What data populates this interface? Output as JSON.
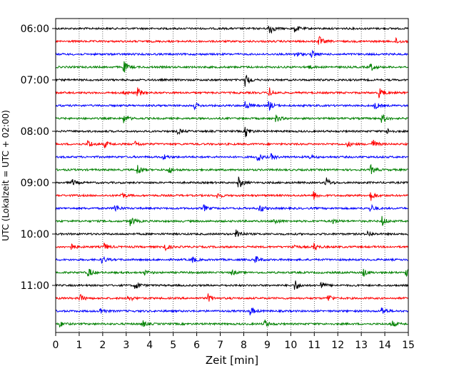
{
  "chart_data": {
    "type": "line",
    "title": "",
    "xlabel": "Zeit  [min]",
    "ylabel": "UTC (Lokalzeit = UTC + 02:00)",
    "xlim": [
      0,
      15
    ],
    "x_ticks": [
      0,
      1,
      2,
      3,
      4,
      5,
      6,
      7,
      8,
      9,
      10,
      11,
      12,
      13,
      14,
      15
    ],
    "y_tick_labels": [
      "06:00",
      "07:00",
      "08:00",
      "09:00",
      "10:00",
      "11:00"
    ],
    "y_tick_trace_index": [
      0,
      4,
      8,
      12,
      16,
      20
    ],
    "grid": "vertical dotted",
    "colors": [
      "#000000",
      "#ff0000",
      "#0000ff",
      "#008000"
    ],
    "traces": [
      {
        "start": "06:00",
        "events": [
          {
            "t": 9.1,
            "a": 1.0
          },
          {
            "t": 10.2,
            "a": 0.5
          }
        ]
      },
      {
        "start": "06:15",
        "events": [
          {
            "t": 11.2,
            "a": 0.8
          },
          {
            "t": 14.5,
            "a": 0.4
          }
        ]
      },
      {
        "start": "06:30",
        "events": [
          {
            "t": 10.2,
            "a": 0.5
          },
          {
            "t": 10.9,
            "a": 0.5
          }
        ]
      },
      {
        "start": "06:45",
        "events": [
          {
            "t": 2.9,
            "a": 0.9
          },
          {
            "t": 10.7,
            "a": 0.4
          },
          {
            "t": 13.4,
            "a": 0.6
          }
        ]
      },
      {
        "start": "07:00",
        "events": [
          {
            "t": 8.1,
            "a": 1.0
          }
        ]
      },
      {
        "start": "07:15",
        "events": [
          {
            "t": 3.5,
            "a": 0.7
          },
          {
            "t": 2.9,
            "a": 0.4
          },
          {
            "t": 9.1,
            "a": 0.7
          },
          {
            "t": 13.8,
            "a": 0.8
          }
        ]
      },
      {
        "start": "07:30",
        "events": [
          {
            "t": 5.9,
            "a": 0.5
          },
          {
            "t": 8.1,
            "a": 0.6
          },
          {
            "t": 9.1,
            "a": 0.6
          },
          {
            "t": 13.6,
            "a": 0.5
          }
        ]
      },
      {
        "start": "07:45",
        "events": [
          {
            "t": 2.9,
            "a": 0.7
          },
          {
            "t": 9.4,
            "a": 0.5
          },
          {
            "t": 13.9,
            "a": 0.7
          }
        ]
      },
      {
        "start": "08:00",
        "events": [
          {
            "t": 5.2,
            "a": 0.4
          },
          {
            "t": 8.1,
            "a": 0.8
          },
          {
            "t": 14.1,
            "a": 0.4
          }
        ]
      },
      {
        "start": "08:15",
        "events": [
          {
            "t": 1.4,
            "a": 0.6
          },
          {
            "t": 2.1,
            "a": 0.5
          },
          {
            "t": 3.4,
            "a": 0.4
          },
          {
            "t": 12.4,
            "a": 0.5
          },
          {
            "t": 13.5,
            "a": 0.7
          }
        ]
      },
      {
        "start": "08:30",
        "events": [
          {
            "t": 4.6,
            "a": 0.4
          },
          {
            "t": 8.6,
            "a": 0.7
          },
          {
            "t": 9.2,
            "a": 0.4
          },
          {
            "t": 10.8,
            "a": 0.3
          }
        ]
      },
      {
        "start": "08:45",
        "events": [
          {
            "t": 3.5,
            "a": 0.8
          },
          {
            "t": 4.8,
            "a": 0.6
          },
          {
            "t": 13.4,
            "a": 0.7
          }
        ]
      },
      {
        "start": "09:00",
        "events": [
          {
            "t": 0.7,
            "a": 0.5
          },
          {
            "t": 7.8,
            "a": 0.9
          },
          {
            "t": 11.5,
            "a": 0.8
          }
        ]
      },
      {
        "start": "09:15",
        "events": [
          {
            "t": 2.8,
            "a": 0.5
          },
          {
            "t": 6.9,
            "a": 0.4
          },
          {
            "t": 11.0,
            "a": 0.6
          },
          {
            "t": 13.4,
            "a": 0.8
          }
        ]
      },
      {
        "start": "09:30",
        "events": [
          {
            "t": 2.5,
            "a": 0.7
          },
          {
            "t": 6.3,
            "a": 0.5
          },
          {
            "t": 8.7,
            "a": 0.6
          },
          {
            "t": 13.4,
            "a": 0.6
          }
        ]
      },
      {
        "start": "09:45",
        "events": [
          {
            "t": 3.2,
            "a": 0.7
          },
          {
            "t": 9.3,
            "a": 0.5
          },
          {
            "t": 11.8,
            "a": 0.4
          },
          {
            "t": 13.9,
            "a": 0.7
          }
        ]
      },
      {
        "start": "10:00",
        "events": [
          {
            "t": 7.7,
            "a": 0.9
          },
          {
            "t": 13.3,
            "a": 0.4
          }
        ]
      },
      {
        "start": "10:15",
        "events": [
          {
            "t": 0.7,
            "a": 0.4
          },
          {
            "t": 2.1,
            "a": 0.5
          },
          {
            "t": 4.6,
            "a": 0.8
          },
          {
            "t": 10.1,
            "a": 0.4
          },
          {
            "t": 11.0,
            "a": 0.6
          }
        ]
      },
      {
        "start": "10:30",
        "events": [
          {
            "t": 2.0,
            "a": 0.5
          },
          {
            "t": 5.8,
            "a": 0.5
          },
          {
            "t": 8.5,
            "a": 0.6
          }
        ]
      },
      {
        "start": "10:45",
        "events": [
          {
            "t": 1.4,
            "a": 0.7
          },
          {
            "t": 3.8,
            "a": 0.4
          },
          {
            "t": 7.5,
            "a": 0.4
          },
          {
            "t": 13.1,
            "a": 0.6
          },
          {
            "t": 14.9,
            "a": 0.7
          }
        ]
      },
      {
        "start": "11:00",
        "events": [
          {
            "t": 3.4,
            "a": 0.7
          },
          {
            "t": 10.2,
            "a": 0.8
          },
          {
            "t": 11.3,
            "a": 0.6
          }
        ]
      },
      {
        "start": "11:15",
        "events": [
          {
            "t": 1.0,
            "a": 0.7
          },
          {
            "t": 3.1,
            "a": 0.5
          },
          {
            "t": 6.5,
            "a": 0.6
          },
          {
            "t": 11.6,
            "a": 0.6
          }
        ]
      },
      {
        "start": "11:30",
        "events": [
          {
            "t": 1.9,
            "a": 0.6
          },
          {
            "t": 8.3,
            "a": 0.6
          },
          {
            "t": 13.9,
            "a": 0.6
          }
        ]
      },
      {
        "start": "11:45",
        "events": [
          {
            "t": 0.2,
            "a": 0.4
          },
          {
            "t": 3.7,
            "a": 0.5
          },
          {
            "t": 8.9,
            "a": 0.6
          },
          {
            "t": 14.3,
            "a": 0.5
          }
        ]
      }
    ]
  }
}
